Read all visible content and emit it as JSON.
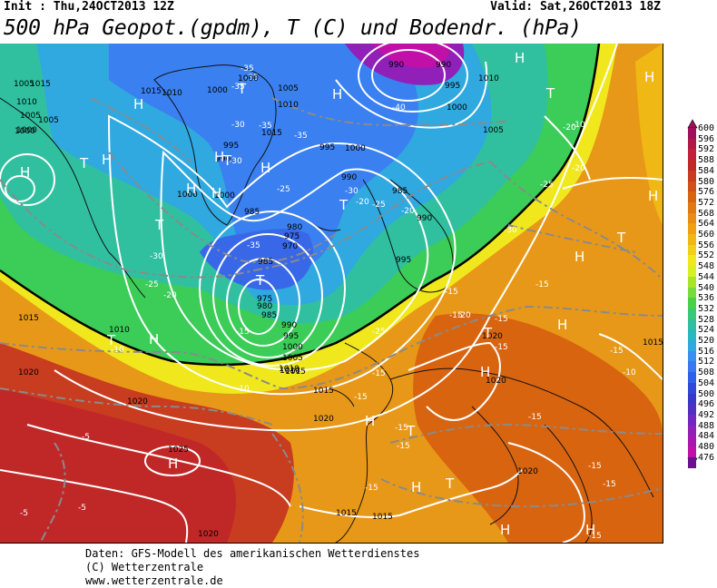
{
  "header": {
    "init": "Init : Thu,24OCT2013 12Z",
    "valid": "Valid: Sat,26OCT2013 18Z",
    "title": "500 hPa Geopot.(gpdm), T (C) und Bodendr. (hPa)"
  },
  "colorbar": {
    "levels": [
      "600",
      "596",
      "592",
      "588",
      "584",
      "580",
      "576",
      "572",
      "568",
      "564",
      "560",
      "556",
      "552",
      "548",
      "544",
      "540",
      "536",
      "532",
      "528",
      "524",
      "520",
      "516",
      "512",
      "508",
      "504",
      "500",
      "496",
      "492",
      "488",
      "484",
      "480",
      "476"
    ],
    "colors": [
      "#a0105a",
      "#b01848",
      "#c0203a",
      "#c02828",
      "#c83c20",
      "#d05018",
      "#d86410",
      "#e07814",
      "#e88c14",
      "#f0a010",
      "#f0b814",
      "#f0d018",
      "#f0e81c",
      "#d8f020",
      "#a8e428",
      "#78dc38",
      "#48d048",
      "#38c878",
      "#30c0a0",
      "#28b8c0",
      "#30a8e0",
      "#3890f0",
      "#3878f0",
      "#3060e8",
      "#3048d8",
      "#3838c8",
      "#5030c0",
      "#7028c0",
      "#9020b8",
      "#a818b0",
      "#c010a8",
      "#6a1090"
    ]
  },
  "map": {
    "isobar_labels": [
      "1015",
      "1010",
      "1005",
      "1000",
      "1000",
      "1000",
      "1015",
      "1010",
      "1005",
      "1000",
      "995",
      "990",
      "985",
      "980",
      "975",
      "970",
      "985",
      "975",
      "980",
      "985",
      "990",
      "995",
      "1000",
      "1005",
      "1010",
      "1005",
      "1000",
      "995",
      "990",
      "985",
      "990",
      "995",
      "1000",
      "990",
      "990",
      "995",
      "1000",
      "1010",
      "1005",
      "1010",
      "1015",
      "1020",
      "1015",
      "1020",
      "1025",
      "1020",
      "1020",
      "1015",
      "1020",
      "1015",
      "1020",
      "1010",
      "1015",
      "1000",
      "1010",
      "1005",
      "1015",
      "1020",
      "1015"
    ],
    "temp_labels": [
      "-35",
      "-35",
      "-35",
      "-30",
      "-35",
      "-30",
      "-25",
      "-20",
      "-35",
      "-30",
      "-25",
      "-20",
      "-15",
      "-10",
      "-5",
      "-35",
      "-40",
      "-30",
      "-25",
      "-20",
      "-15",
      "-15",
      "-15",
      "-15",
      "-15",
      "-15",
      "-15",
      "-15",
      "-15",
      "-15",
      "-15",
      "-15",
      "-10",
      "-10",
      "-5",
      "-5",
      "-15",
      "-15",
      "-10",
      "-20",
      "-25",
      "-30",
      "-25",
      "-20",
      "-15",
      "-20"
    ],
    "high_marker": "H",
    "low_marker": "T"
  },
  "footer": {
    "line1": "Daten: GFS-Modell des amerikanischen Wetterdienstes",
    "line2": "(C) Wetterzentrale",
    "line3": "www.wetterzentrale.de"
  }
}
